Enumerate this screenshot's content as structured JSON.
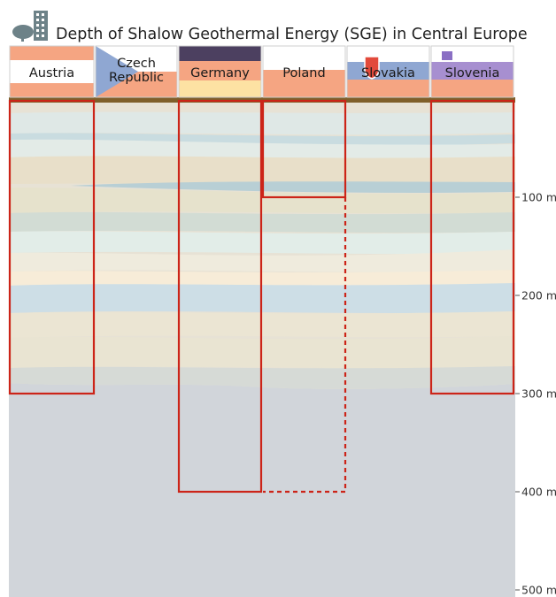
{
  "chart_data": {
    "type": "bar",
    "title": "Depth of Shalow Geothermal Energy (SGE) in Central Europe",
    "categories": [
      "Austria",
      "Czech Republic",
      "Germany",
      "Poland",
      "Slovakia",
      "Slovenia"
    ],
    "category_lines": [
      [
        "Austria"
      ],
      [
        "Czech",
        "Republic"
      ],
      [
        "Germany"
      ],
      [
        "Poland"
      ],
      [
        "Slovakia"
      ],
      [
        "Slovenia"
      ]
    ],
    "series": [
      {
        "values": [
          300,
          null,
          400,
          100,
          null,
          300
        ]
      }
    ],
    "extended": [
      {
        "category": "Poland",
        "from": 100,
        "to": 400,
        "style": "dashed"
      }
    ],
    "yticks": [
      "100 m",
      "200 m",
      "300 m",
      "400 m",
      "500 m"
    ],
    "ytick_values": [
      100,
      200,
      300,
      400,
      500
    ],
    "ylim": [
      0,
      500
    ],
    "yaxis_inverted": true,
    "colors": {
      "bar_outline": "#cc2418",
      "bedrock": "#d1d5da"
    }
  }
}
